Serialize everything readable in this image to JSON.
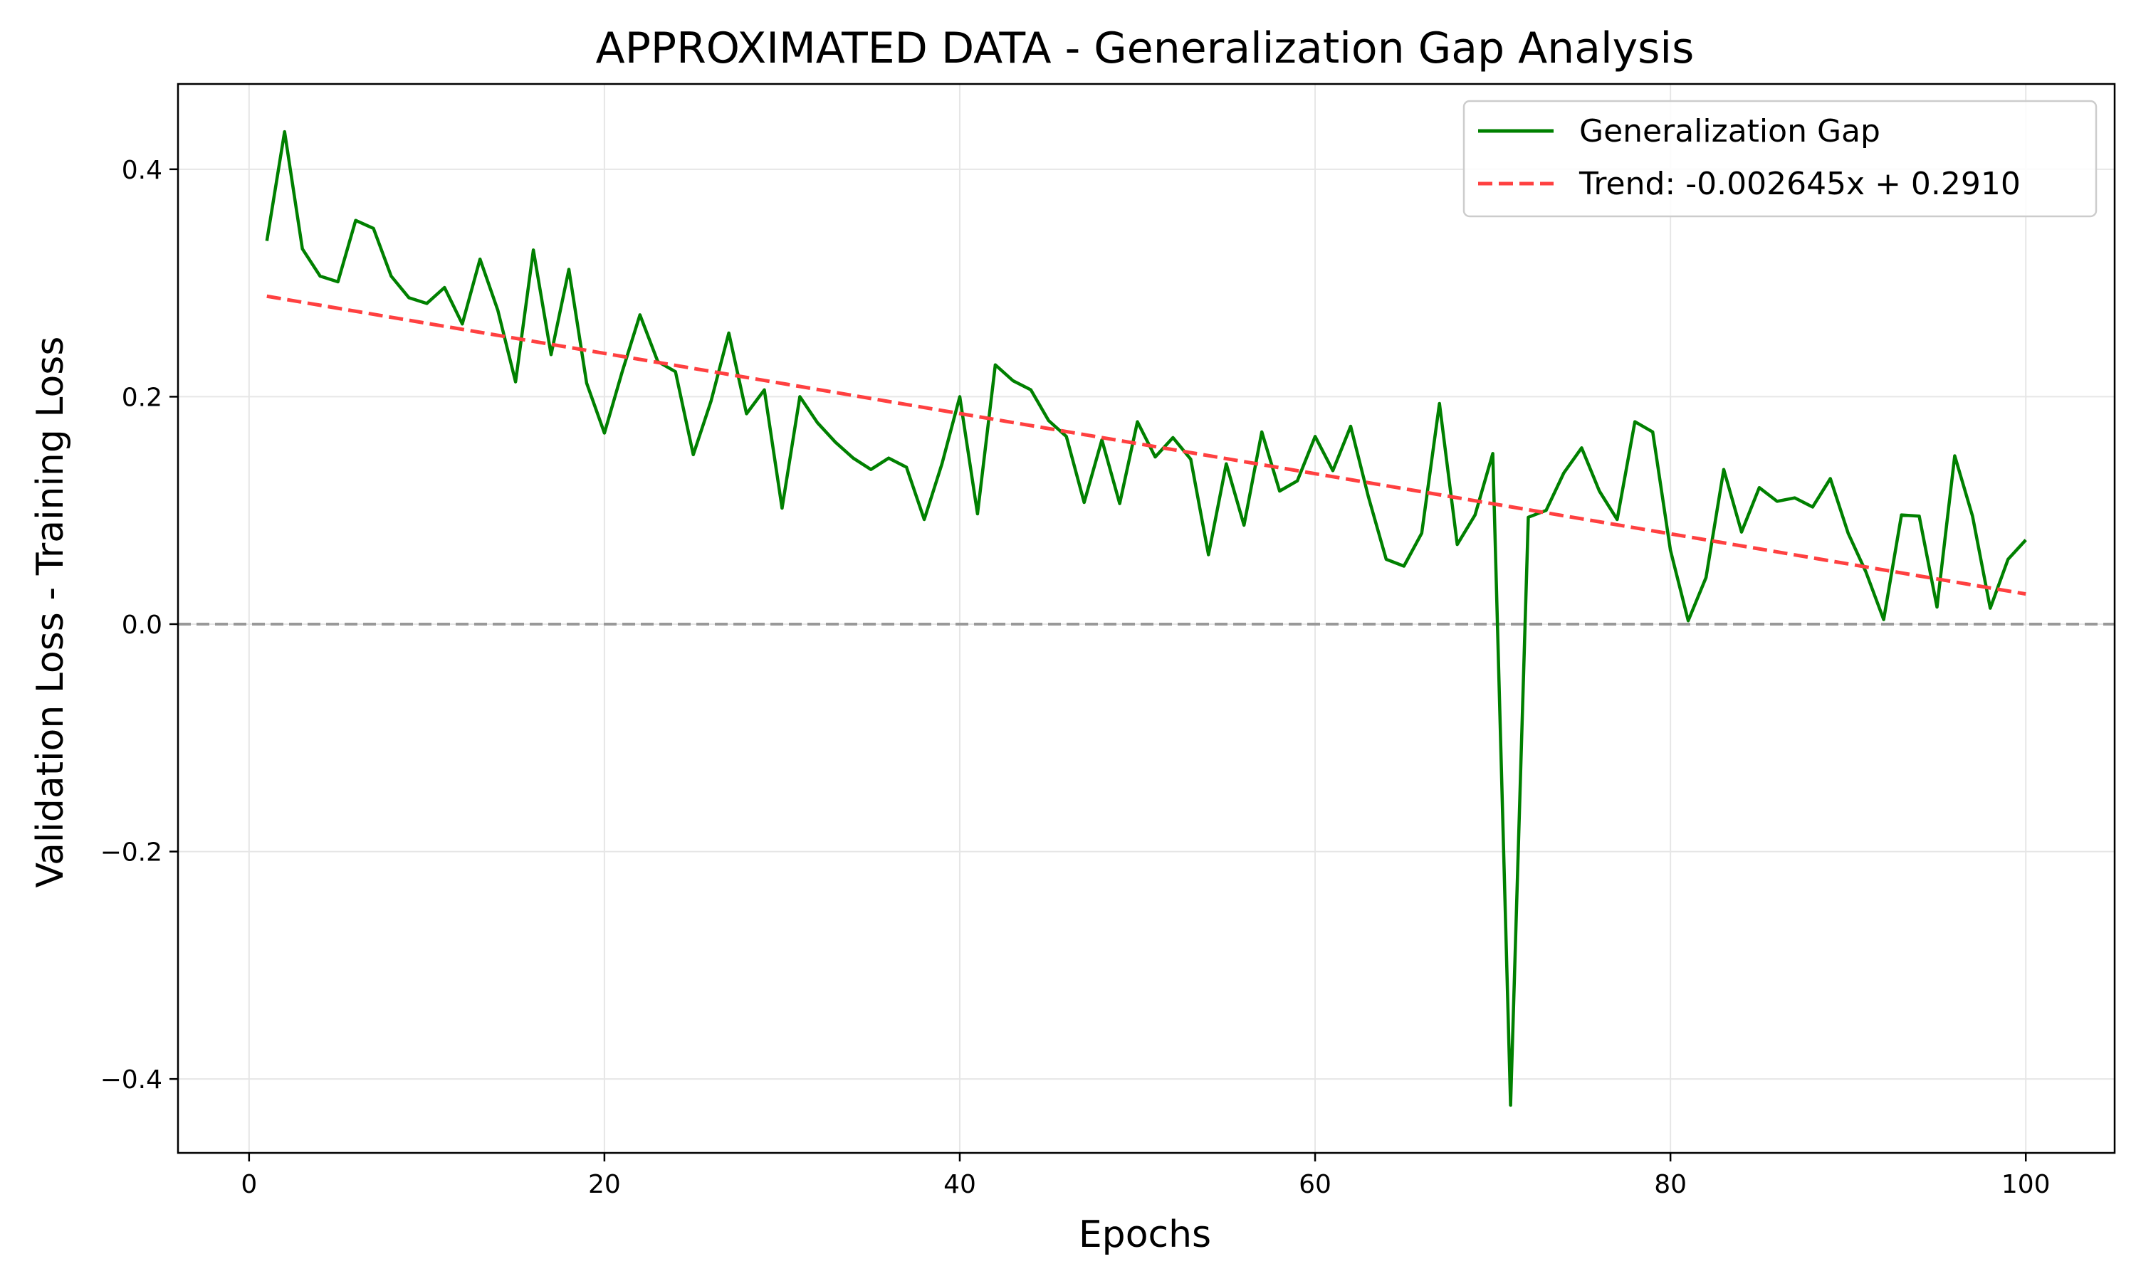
{
  "chart_data": {
    "type": "line",
    "title": "APPROXIMATED DATA - Generalization Gap Analysis",
    "xlabel": "Epochs",
    "ylabel": "Validation Loss - Training Loss",
    "xlim": [
      -4,
      105
    ],
    "ylim": [
      -0.465,
      0.475
    ],
    "x_ticks": [
      0,
      20,
      40,
      60,
      80,
      100
    ],
    "y_ticks": [
      -0.4,
      -0.2,
      0.0,
      0.2,
      0.4
    ],
    "y_tick_labels": [
      "−0.4",
      "−0.2",
      "0.0",
      "0.2",
      "0.4"
    ],
    "x_tick_labels": [
      "0",
      "20",
      "40",
      "60",
      "80",
      "100"
    ],
    "grid": true,
    "legend_position": "top-right",
    "zero_line": {
      "y": 0.0,
      "color": "#999999",
      "style": "dashed"
    },
    "series": [
      {
        "name": "Generalization Gap",
        "color": "#008000",
        "style": "solid",
        "x": [
          1,
          2,
          3,
          4,
          5,
          6,
          7,
          8,
          9,
          10,
          11,
          12,
          13,
          14,
          15,
          16,
          17,
          18,
          19,
          20,
          21,
          22,
          23,
          24,
          25,
          26,
          27,
          28,
          29,
          30,
          31,
          32,
          33,
          34,
          35,
          36,
          37,
          38,
          39,
          40,
          41,
          42,
          43,
          44,
          45,
          46,
          47,
          48,
          49,
          50,
          51,
          52,
          53,
          54,
          55,
          56,
          57,
          58,
          59,
          60,
          61,
          62,
          63,
          64,
          65,
          66,
          67,
          68,
          69,
          70,
          71,
          72,
          73,
          74,
          75,
          76,
          77,
          78,
          79,
          80,
          81,
          82,
          83,
          84,
          85,
          86,
          87,
          88,
          89,
          90,
          91,
          92,
          93,
          94,
          95,
          96,
          97,
          98,
          99,
          100
        ],
        "y": [
          0.337,
          0.433,
          0.33,
          0.306,
          0.301,
          0.355,
          0.348,
          0.306,
          0.287,
          0.282,
          0.296,
          0.264,
          0.321,
          0.276,
          0.213,
          0.329,
          0.237,
          0.312,
          0.212,
          0.168,
          0.222,
          0.272,
          0.231,
          0.222,
          0.149,
          0.196,
          0.256,
          0.185,
          0.206,
          0.102,
          0.2,
          0.177,
          0.16,
          0.146,
          0.136,
          0.146,
          0.138,
          0.092,
          0.141,
          0.2,
          0.097,
          0.228,
          0.214,
          0.206,
          0.179,
          0.165,
          0.107,
          0.162,
          0.106,
          0.178,
          0.147,
          0.164,
          0.145,
          0.061,
          0.141,
          0.087,
          0.169,
          0.117,
          0.126,
          0.165,
          0.135,
          0.174,
          0.112,
          0.057,
          0.051,
          0.08,
          0.194,
          0.07,
          0.096,
          0.15,
          -0.423,
          0.094,
          0.1,
          0.133,
          0.155,
          0.117,
          0.092,
          0.178,
          0.169,
          0.065,
          0.003,
          0.041,
          0.136,
          0.081,
          0.12,
          0.108,
          0.111,
          0.103,
          0.128,
          0.08,
          0.046,
          0.004,
          0.096,
          0.095,
          0.015,
          0.148,
          0.095,
          0.014,
          0.057,
          0.074
        ]
      },
      {
        "name": "Trend: -0.002645x + 0.2910",
        "color": "#ff4040",
        "style": "dashed",
        "slope": -0.002645,
        "intercept": 0.291,
        "x_range": [
          1,
          100
        ]
      }
    ]
  }
}
